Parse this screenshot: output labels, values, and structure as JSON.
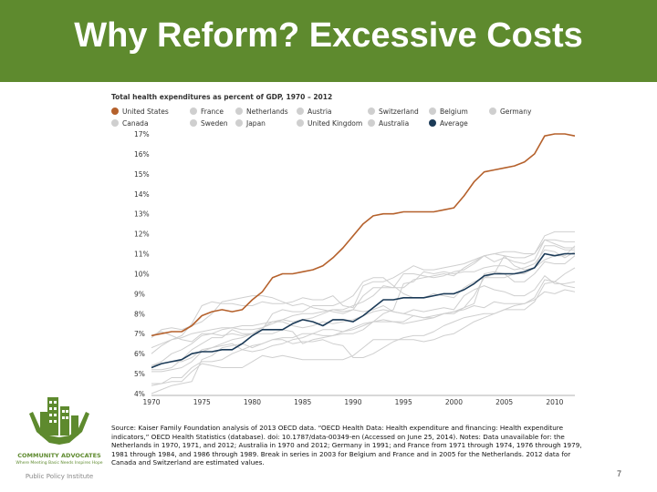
{
  "slide": {
    "title": "Why Reform? Excessive Costs",
    "number": "7"
  },
  "logo": {
    "org": "COMMUNITY ADVOCATES",
    "tagline": "Where Meeting Basic Needs Inspires Hope",
    "institute": "Public Policy Institute"
  },
  "source_note": "Source: Kaiser Family Foundation analysis of 2013 OECD data. “OECD Health Data: Health expenditure and financing: Health expenditure indicators,” OECD Health Statistics (database). doi: 10.1787/data-00349-en (Accessed on June 25, 2014). Notes: Data unavailable for: the Netherlands in 1970, 1971, and 2012; Australia in 1970 and 2012; Germany in 1991; and France from 1971 through 1974, 1976 through 1979, 1981 through 1984, and 1986 through 1989. Break in series in 2003 for Belgium and France and in 2005 for the Netherlands. 2012 data for Canada and Switzerland are estimated values.",
  "colors": {
    "title_bar": "#5e8a2e",
    "us": "#b5612c",
    "average": "#1b3a57",
    "other": "#cfcfcf"
  },
  "chart_data": {
    "type": "line",
    "title": "Total health expenditures as percent of GDP, 1970 – 2012",
    "x": [
      1970,
      1971,
      1972,
      1973,
      1974,
      1975,
      1976,
      1977,
      1978,
      1979,
      1980,
      1981,
      1982,
      1983,
      1984,
      1985,
      1986,
      1987,
      1988,
      1989,
      1990,
      1991,
      1992,
      1993,
      1994,
      1995,
      1996,
      1997,
      1998,
      1999,
      2000,
      2001,
      2002,
      2003,
      2004,
      2005,
      2006,
      2007,
      2008,
      2009,
      2010,
      2011,
      2012
    ],
    "xticks": [
      "1970",
      "1975",
      "1980",
      "1985",
      "1990",
      "1995",
      "2000",
      "2005",
      "2010"
    ],
    "yticks": [
      "4%",
      "5%",
      "6%",
      "7%",
      "8%",
      "9%",
      "10%",
      "11%",
      "12%",
      "13%",
      "14%",
      "15%",
      "16%",
      "17%"
    ],
    "ylim": [
      4,
      17
    ],
    "xlim": [
      1970,
      2012
    ],
    "legend_position": "top",
    "series": [
      {
        "name": "United States",
        "highlight": "us",
        "values": [
          6.9,
          7.0,
          7.1,
          7.1,
          7.4,
          7.9,
          8.1,
          8.2,
          8.1,
          8.2,
          8.7,
          9.1,
          9.8,
          10.0,
          10.0,
          10.1,
          10.2,
          10.4,
          10.8,
          11.3,
          11.9,
          12.5,
          12.9,
          13.0,
          13.0,
          13.1,
          13.1,
          13.1,
          13.1,
          13.2,
          13.3,
          13.9,
          14.6,
          15.1,
          15.2,
          15.3,
          15.4,
          15.6,
          16.0,
          16.9,
          17.0,
          17.0,
          16.9
        ]
      },
      {
        "name": "France",
        "highlight": "other",
        "values": [
          5.4,
          5.5,
          5.6,
          5.6,
          5.8,
          6.2,
          6.3,
          6.5,
          6.7,
          6.8,
          7.0,
          7.3,
          7.5,
          7.7,
          7.9,
          8.0,
          8.0,
          8.1,
          8.2,
          8.2,
          8.4,
          8.6,
          8.9,
          9.4,
          9.3,
          10.0,
          10.0,
          9.9,
          9.8,
          9.9,
          10.1,
          10.2,
          10.5,
          10.9,
          11.0,
          11.1,
          11.1,
          11.0,
          11.0,
          11.7,
          11.7,
          11.6,
          11.6
        ]
      },
      {
        "name": "Netherlands",
        "highlight": "other",
        "values": [
          6.3,
          6.5,
          6.7,
          6.8,
          7.0,
          7.1,
          7.2,
          7.3,
          7.3,
          7.4,
          7.4,
          7.5,
          7.6,
          7.6,
          7.4,
          7.3,
          7.4,
          7.6,
          7.5,
          7.6,
          7.7,
          7.9,
          8.1,
          8.2,
          8.1,
          8.0,
          7.9,
          7.8,
          7.8,
          8.0,
          8.0,
          8.3,
          8.9,
          9.8,
          10.0,
          10.9,
          10.8,
          10.8,
          11.0,
          11.9,
          12.1,
          12.1,
          12.1
        ]
      },
      {
        "name": "Austria",
        "highlight": "other",
        "values": [
          5.2,
          5.2,
          5.3,
          5.7,
          6.2,
          6.5,
          6.8,
          6.8,
          7.2,
          7.0,
          7.0,
          7.0,
          7.0,
          7.2,
          7.1,
          6.5,
          6.7,
          6.8,
          6.9,
          7.0,
          7.0,
          7.2,
          7.6,
          8.0,
          8.2,
          9.5,
          9.6,
          10.1,
          10.0,
          10.1,
          10.0,
          10.1,
          10.1,
          10.3,
          10.4,
          10.4,
          10.2,
          10.3,
          10.5,
          11.2,
          11.1,
          10.8,
          11.1
        ]
      },
      {
        "name": "Switzerland",
        "highlight": "other",
        "values": [
          5.4,
          5.6,
          6.0,
          6.2,
          6.5,
          6.9,
          7.0,
          7.2,
          7.3,
          7.2,
          7.2,
          7.3,
          7.6,
          7.7,
          7.6,
          7.7,
          7.8,
          8.0,
          8.2,
          8.1,
          8.2,
          8.9,
          9.3,
          9.3,
          9.3,
          9.3,
          9.7,
          9.8,
          9.9,
          10.0,
          9.9,
          10.3,
          10.6,
          10.9,
          11.0,
          10.9,
          10.4,
          10.2,
          10.3,
          10.7,
          10.9,
          10.9,
          11.4
        ]
      },
      {
        "name": "Belgium",
        "highlight": "other",
        "values": [
          4.0,
          4.2,
          4.4,
          4.5,
          4.6,
          5.7,
          5.9,
          6.3,
          6.4,
          6.5,
          6.3,
          6.5,
          6.7,
          6.8,
          6.8,
          7.0,
          7.0,
          7.2,
          7.2,
          7.1,
          7.2,
          7.4,
          7.6,
          7.7,
          7.6,
          7.6,
          7.9,
          7.8,
          7.9,
          8.0,
          8.1,
          8.3,
          8.5,
          10.0,
          10.1,
          10.0,
          9.6,
          9.6,
          10.0,
          10.6,
          10.5,
          10.5,
          10.9
        ]
      },
      {
        "name": "Germany",
        "highlight": "other",
        "values": [
          6.0,
          6.4,
          6.7,
          6.9,
          7.5,
          8.4,
          8.6,
          8.5,
          8.5,
          8.4,
          8.4,
          8.6,
          8.5,
          8.5,
          8.6,
          8.8,
          8.7,
          8.7,
          8.9,
          8.4,
          8.3,
          9.4,
          9.6,
          9.6,
          9.8,
          10.1,
          10.4,
          10.2,
          10.2,
          10.3,
          10.4,
          10.5,
          10.7,
          10.9,
          10.6,
          10.8,
          10.6,
          10.5,
          10.7,
          11.7,
          11.5,
          11.3,
          11.3
        ]
      },
      {
        "name": "Canada",
        "highlight": "other",
        "values": [
          6.9,
          7.1,
          6.9,
          6.7,
          6.6,
          7.0,
          7.0,
          6.9,
          7.0,
          6.9,
          7.0,
          7.2,
          8.0,
          8.2,
          8.1,
          8.1,
          8.4,
          8.4,
          8.4,
          8.6,
          8.9,
          9.6,
          9.8,
          9.8,
          9.4,
          9.0,
          8.8,
          8.8,
          9.0,
          8.9,
          8.8,
          9.3,
          9.6,
          9.8,
          9.8,
          9.8,
          10.0,
          10.0,
          10.3,
          11.4,
          11.4,
          11.2,
          11.2
        ]
      },
      {
        "name": "Sweden",
        "highlight": "other",
        "values": [
          6.8,
          7.2,
          7.3,
          7.2,
          7.4,
          7.6,
          8.0,
          8.6,
          8.7,
          8.8,
          8.9,
          8.9,
          8.8,
          8.6,
          8.4,
          8.5,
          8.3,
          8.2,
          8.1,
          8.0,
          8.2,
          8.1,
          8.2,
          8.4,
          8.1,
          8.0,
          8.2,
          8.1,
          8.2,
          8.3,
          8.2,
          8.9,
          9.2,
          9.4,
          9.2,
          9.1,
          8.9,
          8.9,
          9.2,
          9.9,
          9.5,
          9.5,
          9.6
        ]
      },
      {
        "name": "Japan",
        "highlight": "other",
        "values": [
          4.4,
          4.5,
          4.8,
          4.8,
          5.3,
          5.6,
          5.6,
          5.7,
          6.0,
          6.2,
          6.4,
          6.5,
          6.7,
          6.7,
          6.5,
          6.6,
          6.6,
          6.7,
          6.5,
          6.4,
          5.8,
          5.8,
          6.0,
          6.3,
          6.6,
          6.8,
          6.9,
          6.9,
          7.1,
          7.4,
          7.6,
          7.8,
          7.9,
          8.0,
          8.0,
          8.2,
          8.2,
          8.2,
          8.6,
          9.5,
          9.6,
          10.0,
          10.3
        ]
      },
      {
        "name": "United Kingdom",
        "highlight": "other",
        "values": [
          4.5,
          4.5,
          4.6,
          4.6,
          5.1,
          5.5,
          5.4,
          5.3,
          5.3,
          5.3,
          5.6,
          5.9,
          5.8,
          5.9,
          5.8,
          5.7,
          5.7,
          5.7,
          5.7,
          5.7,
          5.9,
          6.3,
          6.7,
          6.7,
          6.7,
          6.7,
          6.7,
          6.6,
          6.7,
          6.9,
          7.0,
          7.3,
          7.6,
          7.8,
          8.0,
          8.2,
          8.4,
          8.5,
          8.8,
          9.7,
          9.6,
          9.4,
          9.3
        ]
      },
      {
        "name": "Australia",
        "highlight": "other",
        "values": [
          5.1,
          5.1,
          5.2,
          5.3,
          5.6,
          6.1,
          6.3,
          6.4,
          6.5,
          6.2,
          6.1,
          6.2,
          6.4,
          6.5,
          6.7,
          6.8,
          7.0,
          6.9,
          6.9,
          7.1,
          7.3,
          7.5,
          7.6,
          7.6,
          7.6,
          7.5,
          7.6,
          7.7,
          7.8,
          8.0,
          8.1,
          8.2,
          8.4,
          8.3,
          8.6,
          8.5,
          8.5,
          8.5,
          8.7,
          9.1,
          9.0,
          9.2,
          9.1
        ]
      },
      {
        "name": "Average",
        "highlight": "average",
        "values": [
          5.3,
          5.5,
          5.6,
          5.7,
          6.0,
          6.1,
          6.1,
          6.2,
          6.2,
          6.5,
          6.9,
          7.2,
          7.2,
          7.2,
          7.5,
          7.7,
          7.6,
          7.4,
          7.7,
          7.7,
          7.6,
          7.9,
          8.3,
          8.7,
          8.7,
          8.8,
          8.8,
          8.8,
          8.9,
          9.0,
          9.0,
          9.2,
          9.5,
          9.9,
          10.0,
          10.0,
          10.0,
          10.1,
          10.3,
          11.0,
          10.9,
          11.0,
          11.0
        ]
      }
    ]
  }
}
